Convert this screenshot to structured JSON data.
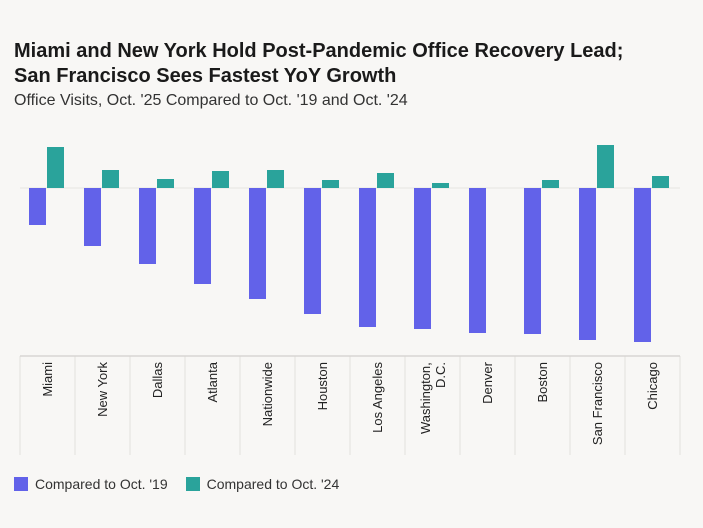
{
  "chart_data": {
    "type": "bar",
    "title": [
      "Miami and New York Hold Post-Pandemic Office Recovery Lead;",
      "San Francisco Sees Fastest YoY Growth"
    ],
    "subtitle": "Office Visits, Oct. '25 Compared to Oct. '19 and Oct. '24",
    "categories": [
      "Miami",
      "New York",
      "Dallas",
      "Atlanta",
      "Nationwide",
      "Houston",
      "Los Angeles",
      "Washington, D.C.",
      "Denver",
      "Boston",
      "San Francisco",
      "Chicago"
    ],
    "series": [
      {
        "name": "Compared to Oct. '19",
        "color": "#6262e9",
        "values": [
          -7.4,
          -11.6,
          -15.2,
          -19.2,
          -22.2,
          -25.2,
          -27.8,
          -28.2,
          -29.0,
          -29.2,
          -30.4,
          -30.8
        ]
      },
      {
        "name": "Compared to Oct. '24",
        "color": "#2aa39b",
        "values": [
          8.2,
          3.6,
          1.8,
          3.4,
          3.6,
          1.6,
          3.0,
          1.0,
          0,
          1.6,
          8.6,
          2.4
        ]
      }
    ],
    "ylim": [
      -33.6,
      9.6
    ]
  }
}
